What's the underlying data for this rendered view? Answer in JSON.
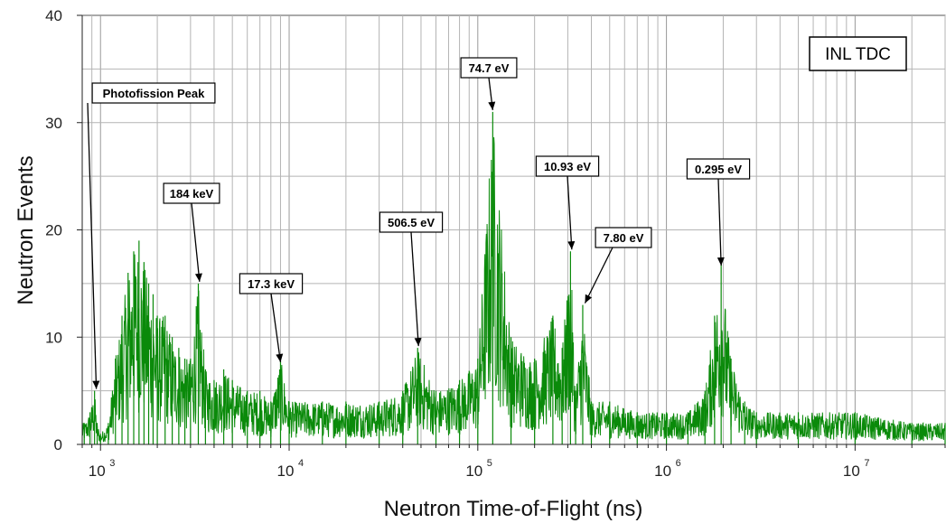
{
  "chart_data": {
    "type": "line",
    "xlabel": "Neutron Time-of-Flight (ns)",
    "ylabel": "Neutron Events",
    "xscale": "log",
    "xlim": [
      800,
      30000000
    ],
    "ylim": [
      0,
      40
    ],
    "yticks": [
      0,
      10,
      20,
      30,
      40
    ],
    "xticks": [
      {
        "value": 1000,
        "base": "10",
        "exp": "3"
      },
      {
        "value": 10000,
        "base": "10",
        "exp": "4"
      },
      {
        "value": 100000,
        "base": "10",
        "exp": "5"
      },
      {
        "value": 1000000,
        "base": "10",
        "exp": "6"
      },
      {
        "value": 10000000,
        "base": "10",
        "exp": "7"
      }
    ],
    "grid": true,
    "legend": {
      "text": "INL TDC",
      "placement": "top-right"
    },
    "series_color": "#0a8a0a",
    "series": [
      {
        "x": [
          820,
          880,
          930,
          960,
          1000,
          1100,
          1200,
          1300,
          1400,
          1500,
          1600,
          1700,
          1800,
          1900,
          2000,
          2200,
          2400,
          2600,
          2800,
          3000,
          3300,
          3600,
          4000,
          4500,
          5000,
          6000,
          7000,
          8000,
          9000,
          10000,
          15000,
          20000,
          30000,
          40000,
          48000,
          60000,
          80000,
          100000,
          120000,
          150000,
          200000,
          250000,
          280000,
          310000,
          330000,
          360000,
          400000,
          500000,
          700000,
          1000000,
          1300000,
          1600000,
          1800000,
          1950000,
          2200000,
          2600000,
          3000000,
          5000000,
          10000000,
          20000000,
          30000000
        ],
        "y": [
          2,
          3,
          5,
          2,
          1,
          2,
          8,
          12,
          16,
          18,
          19,
          17,
          15,
          14,
          12,
          12,
          10,
          9,
          8,
          8,
          15,
          7,
          6,
          7,
          6,
          5,
          5,
          4,
          8,
          4,
          4,
          4,
          4,
          5,
          9,
          5,
          6,
          8,
          31,
          10,
          8,
          12,
          9,
          18,
          5,
          13,
          4,
          4,
          3,
          3,
          3,
          5,
          12,
          17,
          8,
          4,
          3,
          3,
          3,
          2,
          2
        ]
      }
    ],
    "annotations": [
      {
        "text": "Photofission Peak",
        "x": 950,
        "y": 5
      },
      {
        "text": "184 keV",
        "x": 3350,
        "y": 15
      },
      {
        "text": "17.3 keV",
        "x": 9000,
        "y": 7.5
      },
      {
        "text": "506.5 eV",
        "x": 48500,
        "y": 9
      },
      {
        "text": "74.7 eV",
        "x": 120000,
        "y": 31
      },
      {
        "text": "10.93 eV",
        "x": 315000,
        "y": 18
      },
      {
        "text": "7.80 eV",
        "x": 370000,
        "y": 13
      },
      {
        "text": "0.295 eV",
        "x": 1950000,
        "y": 16.5
      }
    ]
  }
}
